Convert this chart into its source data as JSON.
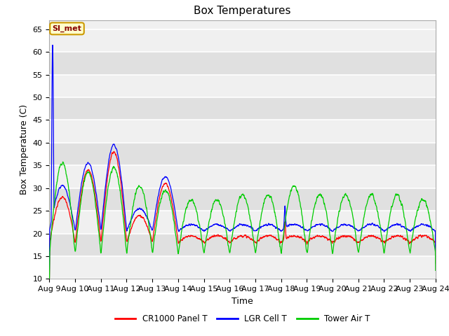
{
  "title": "Box Temperatures",
  "xlabel": "Time",
  "ylabel": "Box Temperature (C)",
  "ylim": [
    10,
    67
  ],
  "yticks": [
    10,
    15,
    20,
    25,
    30,
    35,
    40,
    45,
    50,
    55,
    60,
    65
  ],
  "x_tick_labels": [
    "Aug 9",
    "Aug 10",
    "Aug 11",
    "Aug 12",
    "Aug 13",
    "Aug 14",
    "Aug 15",
    "Aug 16",
    "Aug 17",
    "Aug 18",
    "Aug 19",
    "Aug 20",
    "Aug 21",
    "Aug 22",
    "Aug 23",
    "Aug 24"
  ],
  "legend_labels": [
    "CR1000 Panel T",
    "LGR Cell T",
    "Tower Air T"
  ],
  "line_colors": [
    "#ff0000",
    "#0000ff",
    "#00cc00"
  ],
  "annotation_text": "SI_met",
  "annotation_bg": "#ffffcc",
  "annotation_border": "#cc9900",
  "plot_bg_light": "#f0f0f0",
  "plot_bg_dark": "#e0e0e0",
  "title_fontsize": 11,
  "axis_label_fontsize": 9,
  "tick_fontsize": 8
}
